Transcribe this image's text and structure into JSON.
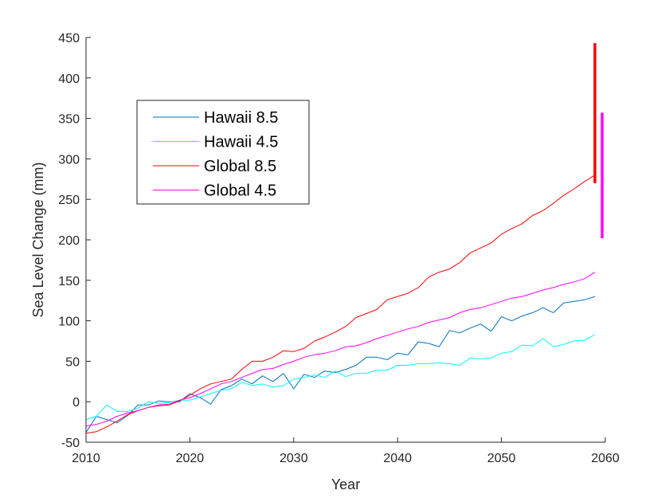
{
  "chart_data": {
    "type": "line",
    "xlabel": "Year",
    "ylabel": "Sea Level Change (mm)",
    "xlim": [
      2010,
      2060
    ],
    "ylim": [
      -50,
      450
    ],
    "xticks": [
      2010,
      2020,
      2030,
      2040,
      2050,
      2060
    ],
    "yticks": [
      -50,
      0,
      50,
      100,
      150,
      200,
      250,
      300,
      350,
      400,
      450
    ],
    "grid": false,
    "legend_position": "upper-left",
    "x": [
      2010,
      2011,
      2012,
      2013,
      2014,
      2015,
      2016,
      2017,
      2018,
      2019,
      2020,
      2021,
      2022,
      2023,
      2024,
      2025,
      2026,
      2027,
      2028,
      2029,
      2030,
      2031,
      2032,
      2033,
      2034,
      2035,
      2036,
      2037,
      2038,
      2039,
      2040,
      2041,
      2042,
      2043,
      2044,
      2045,
      2046,
      2047,
      2048,
      2049,
      2050,
      2051,
      2052,
      2053,
      2054,
      2055,
      2056,
      2057,
      2058,
      2059
    ],
    "series": [
      {
        "name": "Hawaii 8.5",
        "color": "#0072BD",
        "values": [
          -38,
          -18,
          -22,
          -26,
          -17,
          -4,
          -4,
          1,
          0,
          0,
          10,
          5,
          -3,
          15,
          20,
          28,
          22,
          32,
          25,
          35,
          16,
          34,
          30,
          38,
          36,
          40,
          45,
          55,
          55,
          52,
          60,
          58,
          74,
          72,
          68,
          88,
          85,
          91,
          96,
          87,
          105,
          100,
          106,
          110,
          116,
          110,
          122,
          124,
          126,
          130
        ]
      },
      {
        "name": "Hawaii 4.5",
        "color": "#00FFFF",
        "values": [
          -22,
          -18,
          -4,
          -12,
          -12,
          -8,
          0,
          -2,
          -1,
          2,
          2,
          6,
          10,
          14,
          16,
          24,
          20,
          22,
          18,
          20,
          28,
          30,
          33,
          30,
          38,
          31,
          35,
          35,
          39,
          39,
          45,
          45,
          47,
          47,
          48,
          47,
          45,
          54,
          53,
          54,
          60,
          62,
          70,
          69,
          78,
          68,
          71,
          75,
          76,
          83
        ]
      },
      {
        "name": "Global 8.5",
        "color": "#FF0000",
        "values": [
          -39,
          -37,
          -31,
          -24,
          -16,
          -11,
          -7,
          -5,
          -4,
          1,
          8,
          16,
          22,
          25,
          28,
          40,
          50,
          50,
          55,
          63,
          62,
          66,
          75,
          80,
          86,
          93,
          104,
          109,
          114,
          126,
          130,
          134,
          141,
          154,
          160,
          164,
          172,
          184,
          190,
          196,
          207,
          214,
          220,
          230,
          236,
          245,
          255,
          263,
          272,
          280
        ]
      },
      {
        "name": "Global 4.5",
        "color": "#FF00FF",
        "values": [
          -30,
          -28,
          -24,
          -18,
          -14,
          -11,
          -7,
          -4,
          -3,
          2,
          5,
          10,
          16,
          22,
          25,
          30,
          35,
          40,
          41,
          46,
          50,
          55,
          58,
          60,
          63,
          68,
          69,
          73,
          78,
          82,
          86,
          90,
          93,
          98,
          101,
          104,
          110,
          114,
          116,
          120,
          124,
          128,
          130,
          134,
          138,
          141,
          145,
          148,
          152,
          160
        ]
      }
    ],
    "range_bars": [
      {
        "series": "Global 8.5",
        "x": 2059.0,
        "y_low": 270,
        "y_high": 443,
        "color": "#FF0000"
      },
      {
        "series": "Global 4.5",
        "x": 2059.7,
        "y_low": 202,
        "y_high": 357,
        "color": "#FF00FF"
      }
    ]
  }
}
